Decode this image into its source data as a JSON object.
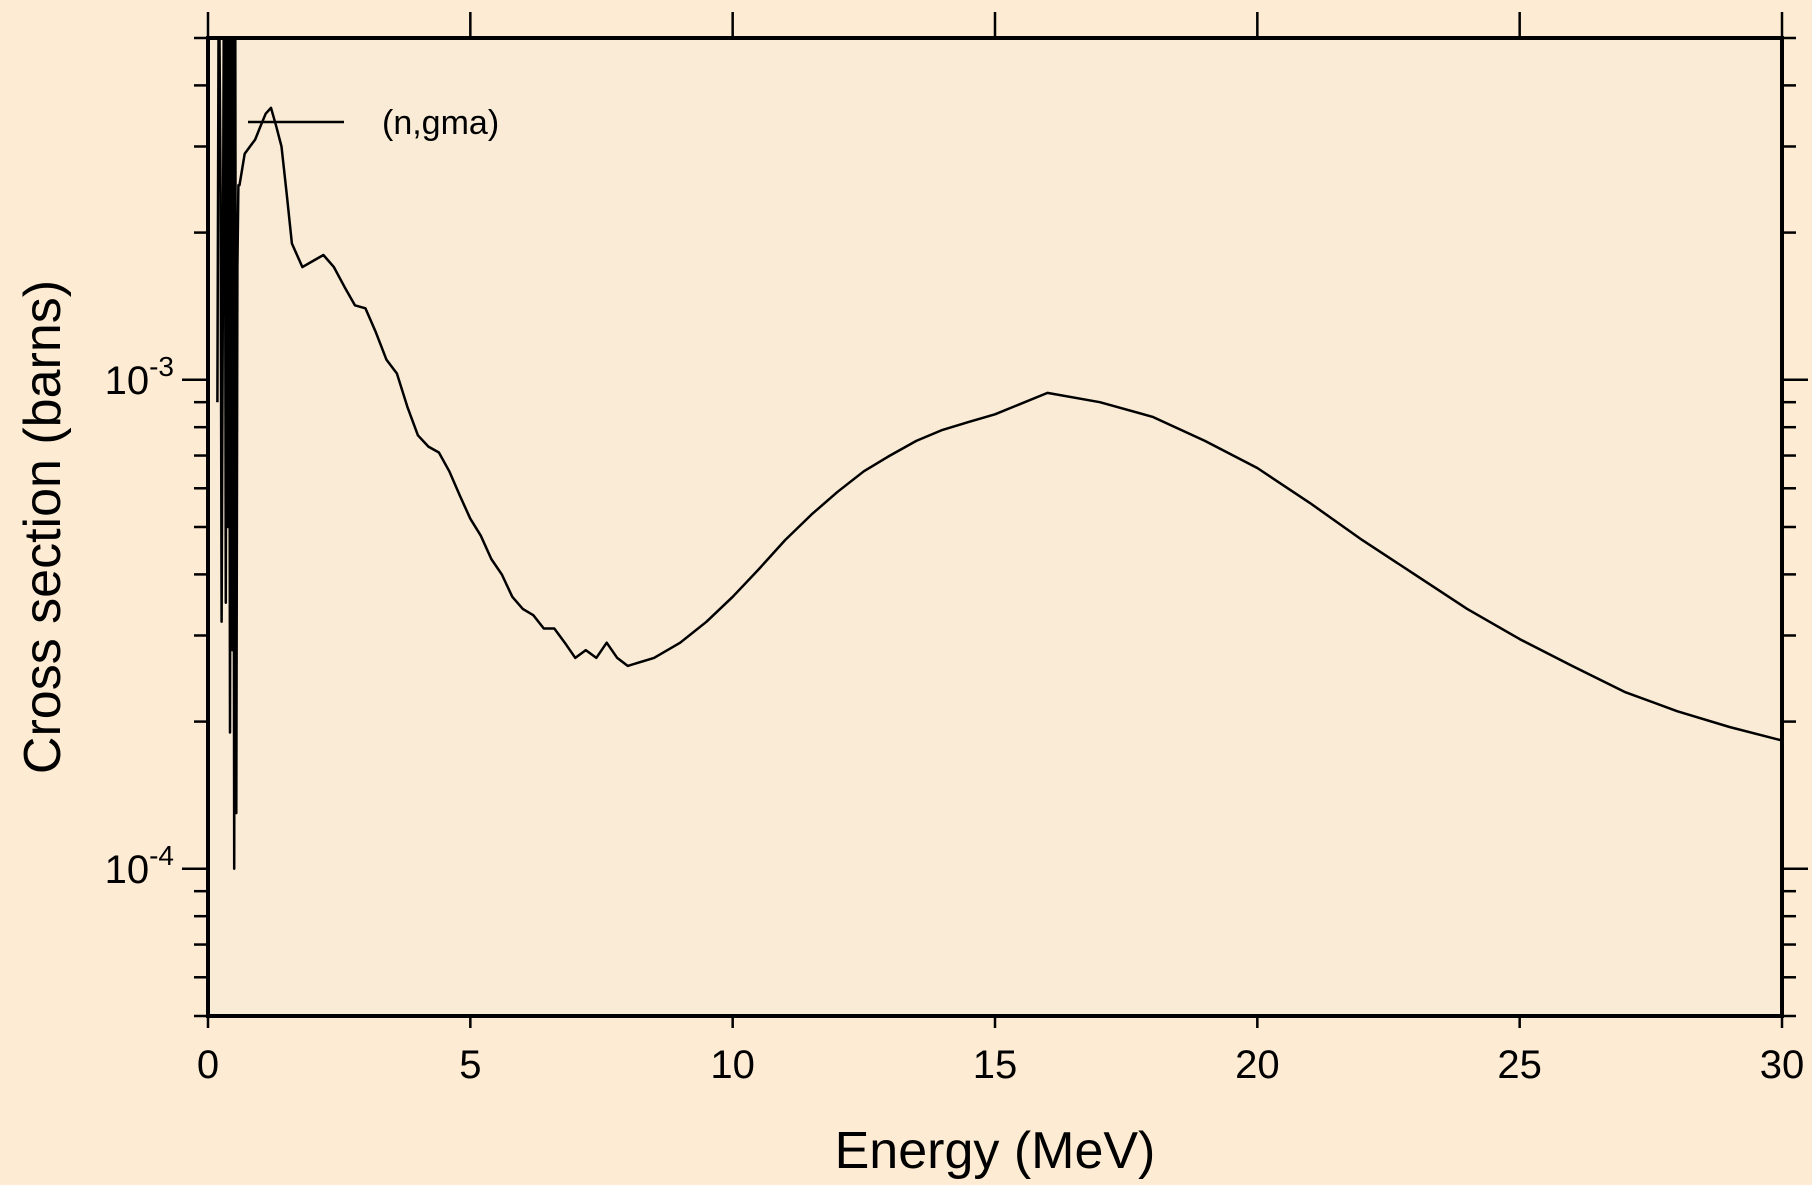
{
  "chart_data": {
    "type": "line",
    "xlabel": "Energy (MeV)",
    "ylabel": "Cross section (barns)",
    "xlim": [
      0,
      30
    ],
    "ylim": [
      5e-05,
      0.005
    ],
    "yscale": "log",
    "grid": false,
    "legend_position": "top-left",
    "colors": {
      "page_background": "#fdebd3",
      "plot_background": "#faebd7",
      "line": "#000000"
    },
    "x_ticks": [
      "0",
      "5",
      "10",
      "15",
      "20",
      "25",
      "30"
    ],
    "y_ticks": [
      {
        "value": 0.0001,
        "base": "10",
        "exp": "-4"
      },
      {
        "value": 0.001,
        "base": "10",
        "exp": "-3"
      }
    ],
    "series": [
      {
        "name": "(n,gma)",
        "x": [
          0.18,
          0.2,
          0.22,
          0.24,
          0.26,
          0.28,
          0.3,
          0.32,
          0.34,
          0.36,
          0.38,
          0.4,
          0.42,
          0.44,
          0.46,
          0.48,
          0.5,
          0.52,
          0.54,
          0.56,
          0.58,
          0.6,
          0.7,
          0.8,
          0.9,
          1.0,
          1.1,
          1.2,
          1.3,
          1.4,
          1.5,
          1.6,
          1.8,
          2.0,
          2.2,
          2.4,
          2.6,
          2.8,
          3.0,
          3.2,
          3.4,
          3.6,
          3.8,
          4.0,
          4.2,
          4.4,
          4.6,
          4.8,
          5.0,
          5.2,
          5.4,
          5.6,
          5.8,
          6.0,
          6.2,
          6.4,
          6.6,
          6.8,
          7.0,
          7.2,
          7.4,
          7.6,
          7.8,
          8.0,
          8.5,
          9.0,
          9.5,
          10,
          10.5,
          11,
          11.5,
          12,
          12.5,
          13,
          13.5,
          14,
          14.5,
          15,
          16,
          17,
          18,
          19,
          20,
          21,
          22,
          23,
          24,
          25,
          26,
          27,
          28,
          29,
          30
        ],
        "y": [
          0.0009,
          0.005,
          0.0095,
          0.0024,
          0.00032,
          0.0012,
          0.005,
          0.0075,
          0.00035,
          0.009,
          0.0005,
          0.005,
          0.00019,
          0.007,
          0.00028,
          0.0085,
          0.0001,
          0.006,
          0.00013,
          0.0017,
          0.0025,
          0.0025,
          0.0029,
          0.003,
          0.0031,
          0.0033,
          0.0035,
          0.0036,
          0.0033,
          0.003,
          0.0024,
          0.0019,
          0.0017,
          0.00175,
          0.0018,
          0.0017,
          0.00155,
          0.00142,
          0.0014,
          0.00125,
          0.0011,
          0.00103,
          0.00088,
          0.00077,
          0.00073,
          0.00071,
          0.00065,
          0.00058,
          0.00052,
          0.00048,
          0.00043,
          0.0004,
          0.00036,
          0.00034,
          0.00033,
          0.00031,
          0.00031,
          0.00029,
          0.00027,
          0.00028,
          0.00027,
          0.00029,
          0.00027,
          0.00026,
          0.00027,
          0.00029,
          0.00032,
          0.00036,
          0.00041,
          0.00047,
          0.00053,
          0.00059,
          0.00065,
          0.0007,
          0.00075,
          0.00079,
          0.00082,
          0.00085,
          0.00094,
          0.0009,
          0.00084,
          0.00075,
          0.00066,
          0.00056,
          0.00047,
          0.0004,
          0.00034,
          0.000295,
          0.00026,
          0.00023,
          0.00021,
          0.000195,
          0.000183
        ]
      }
    ]
  }
}
